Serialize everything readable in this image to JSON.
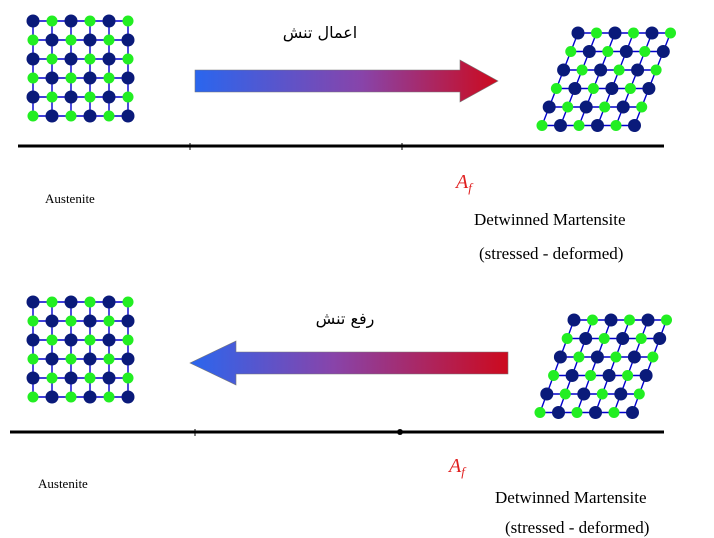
{
  "colors": {
    "atom_dark": "#0a1a7a",
    "atom_light": "#22ee22",
    "bond": "#0000cc",
    "arrow_start": "#2a66ee",
    "arrow_mid": "#8844aa",
    "arrow_end": "#cc0a1e",
    "af": "#e02020",
    "axis": "#000000"
  },
  "panels": [
    {
      "arrow_label": "اعمال تنش",
      "arrow_direction": "right",
      "left_label": "Austenite",
      "right_label_line1": "Detwinned Martensite",
      "right_label_line2": "(stressed - deformed)",
      "af_main": "A",
      "af_sub": "f"
    },
    {
      "arrow_label": "رفع تنش",
      "arrow_direction": "left",
      "left_label": "Austenite",
      "right_label_line1": "Detwinned Martensite",
      "right_label_line2": "(stressed - deformed)",
      "af_main": "A",
      "af_sub": "f"
    }
  ]
}
